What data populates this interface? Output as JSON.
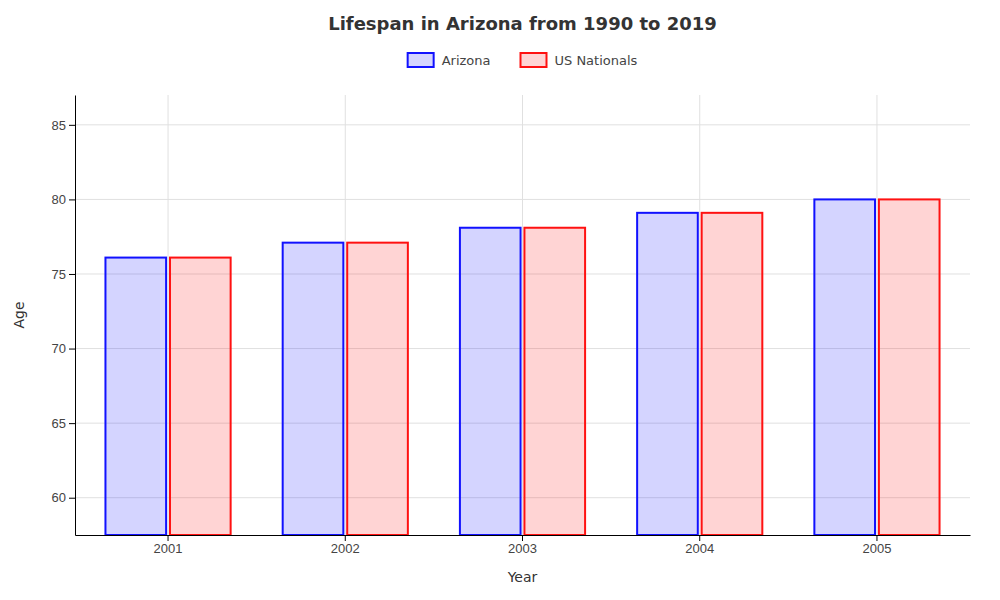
{
  "chart_data": {
    "type": "bar",
    "title": "Lifespan in Arizona from 1990 to 2019",
    "xlabel": "Year",
    "ylabel": "Age",
    "categories": [
      "2001",
      "2002",
      "2003",
      "2004",
      "2005"
    ],
    "series": [
      {
        "name": "Arizona",
        "color": "#1111ff",
        "values": [
          76.1,
          77.1,
          78.1,
          79.1,
          80.0
        ]
      },
      {
        "name": "US Nationals",
        "color": "#ff1111",
        "values": [
          76.1,
          77.1,
          78.1,
          79.1,
          80.0
        ]
      }
    ],
    "ylim": [
      57.5,
      87
    ],
    "yticks": [
      60,
      65,
      70,
      75,
      80,
      85
    ],
    "grid": true,
    "legend": "top"
  }
}
